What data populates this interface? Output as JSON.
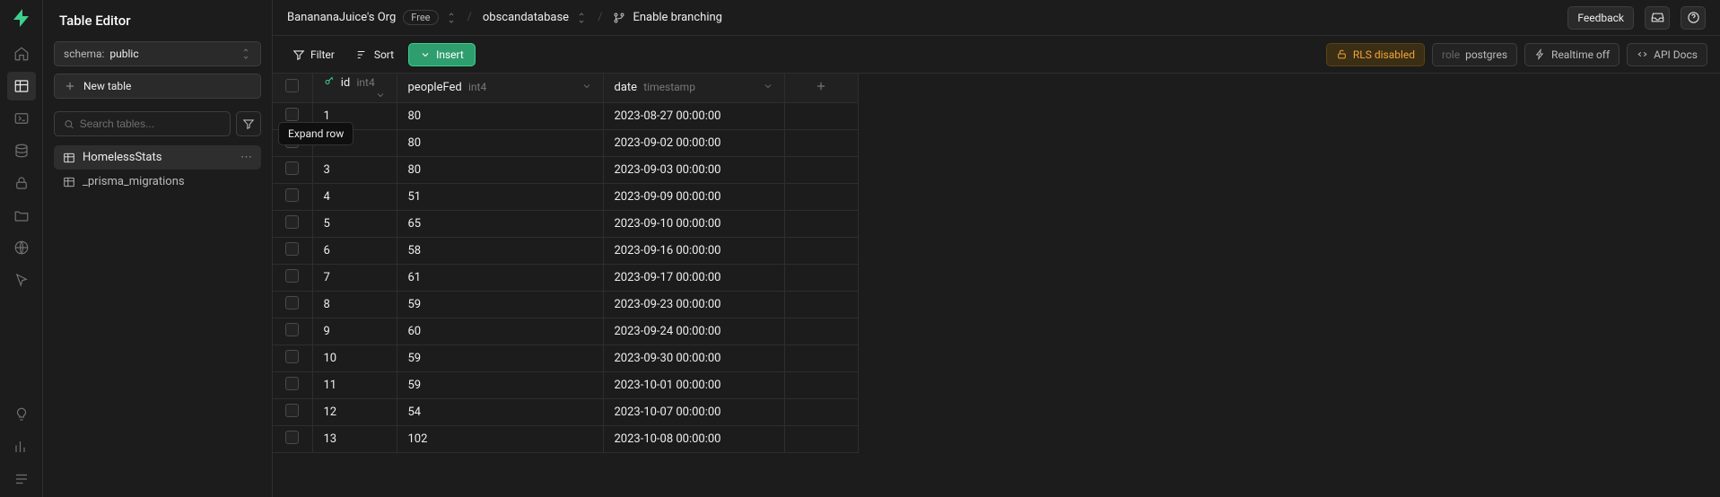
{
  "sidebar": {
    "title": "Table Editor",
    "schema_label": "schema:",
    "schema_value": "public",
    "new_table": "New table",
    "search_placeholder": "Search tables...",
    "tables": [
      "HomelessStats",
      "_prisma_migrations"
    ],
    "active_table_index": 0
  },
  "topbar": {
    "org": "BanananaJuice's Org",
    "plan": "Free",
    "project": "obscandatabase",
    "branching": "Enable branching",
    "feedback": "Feedback"
  },
  "toolbar": {
    "filter": "Filter",
    "sort": "Sort",
    "insert": "Insert",
    "rls": "RLS disabled",
    "role_label": "role",
    "role_value": "postgres",
    "realtime": "Realtime off",
    "apidocs": "API Docs"
  },
  "columns": {
    "id_name": "id",
    "id_type": "int4",
    "pf_name": "peopleFed",
    "pf_type": "int4",
    "dt_name": "date",
    "dt_type": "timestamp"
  },
  "tooltip": "Expand row",
  "rows": [
    {
      "id": "1",
      "peopleFed": "80",
      "date": "2023-08-27 00:00:00"
    },
    {
      "id": "",
      "peopleFed": "80",
      "date": "2023-09-02 00:00:00"
    },
    {
      "id": "3",
      "peopleFed": "80",
      "date": "2023-09-03 00:00:00"
    },
    {
      "id": "4",
      "peopleFed": "51",
      "date": "2023-09-09 00:00:00"
    },
    {
      "id": "5",
      "peopleFed": "65",
      "date": "2023-09-10 00:00:00"
    },
    {
      "id": "6",
      "peopleFed": "58",
      "date": "2023-09-16 00:00:00"
    },
    {
      "id": "7",
      "peopleFed": "61",
      "date": "2023-09-17 00:00:00"
    },
    {
      "id": "8",
      "peopleFed": "59",
      "date": "2023-09-23 00:00:00"
    },
    {
      "id": "9",
      "peopleFed": "60",
      "date": "2023-09-24 00:00:00"
    },
    {
      "id": "10",
      "peopleFed": "59",
      "date": "2023-09-30 00:00:00"
    },
    {
      "id": "11",
      "peopleFed": "59",
      "date": "2023-10-01 00:00:00"
    },
    {
      "id": "12",
      "peopleFed": "54",
      "date": "2023-10-07 00:00:00"
    },
    {
      "id": "13",
      "peopleFed": "102",
      "date": "2023-10-08 00:00:00"
    }
  ]
}
